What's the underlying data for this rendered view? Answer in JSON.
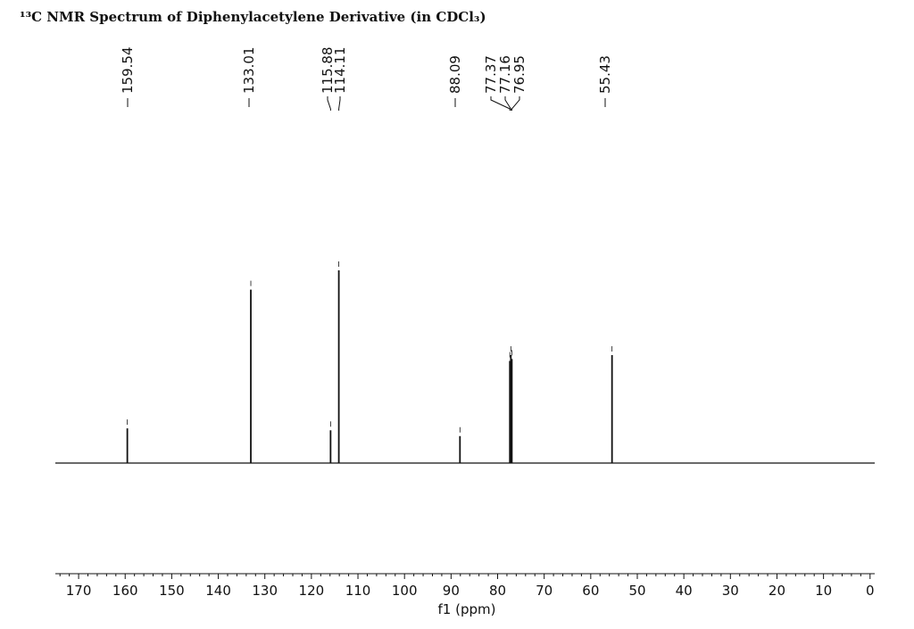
{
  "colors": {
    "ink": "#111111",
    "background": "#ffffff"
  },
  "chart_data": {
    "type": "line",
    "title": "¹³C NMR Spectrum of Diphenylacetylene Derivative (in CDCl₃)",
    "xlabel": "f1 (ppm)",
    "ylabel": "",
    "x_reversed": true,
    "xlim": [
      175,
      -1
    ],
    "ylim": [
      -1,
      1
    ],
    "x_ticks": [
      170,
      160,
      150,
      140,
      130,
      120,
      110,
      100,
      90,
      80,
      70,
      60,
      50,
      40,
      30,
      20,
      10,
      0
    ],
    "grid": false,
    "legend": "none",
    "peaks": [
      {
        "ppm": 159.54,
        "label": "159.54",
        "intensity": 0.18
      },
      {
        "ppm": 133.01,
        "label": "133.01",
        "intensity": 0.9
      },
      {
        "ppm": 115.88,
        "label": "115.88",
        "intensity": 0.17
      },
      {
        "ppm": 114.11,
        "label": "114.11",
        "intensity": 1.0
      },
      {
        "ppm": 88.09,
        "label": "88.09",
        "intensity": 0.14
      },
      {
        "ppm": 77.37,
        "label": "77.37",
        "intensity": 0.53
      },
      {
        "ppm": 77.16,
        "label": "77.16",
        "intensity": 0.56
      },
      {
        "ppm": 76.95,
        "label": "76.95",
        "intensity": 0.54
      },
      {
        "ppm": 55.43,
        "label": "55.43",
        "intensity": 0.56
      }
    ]
  }
}
